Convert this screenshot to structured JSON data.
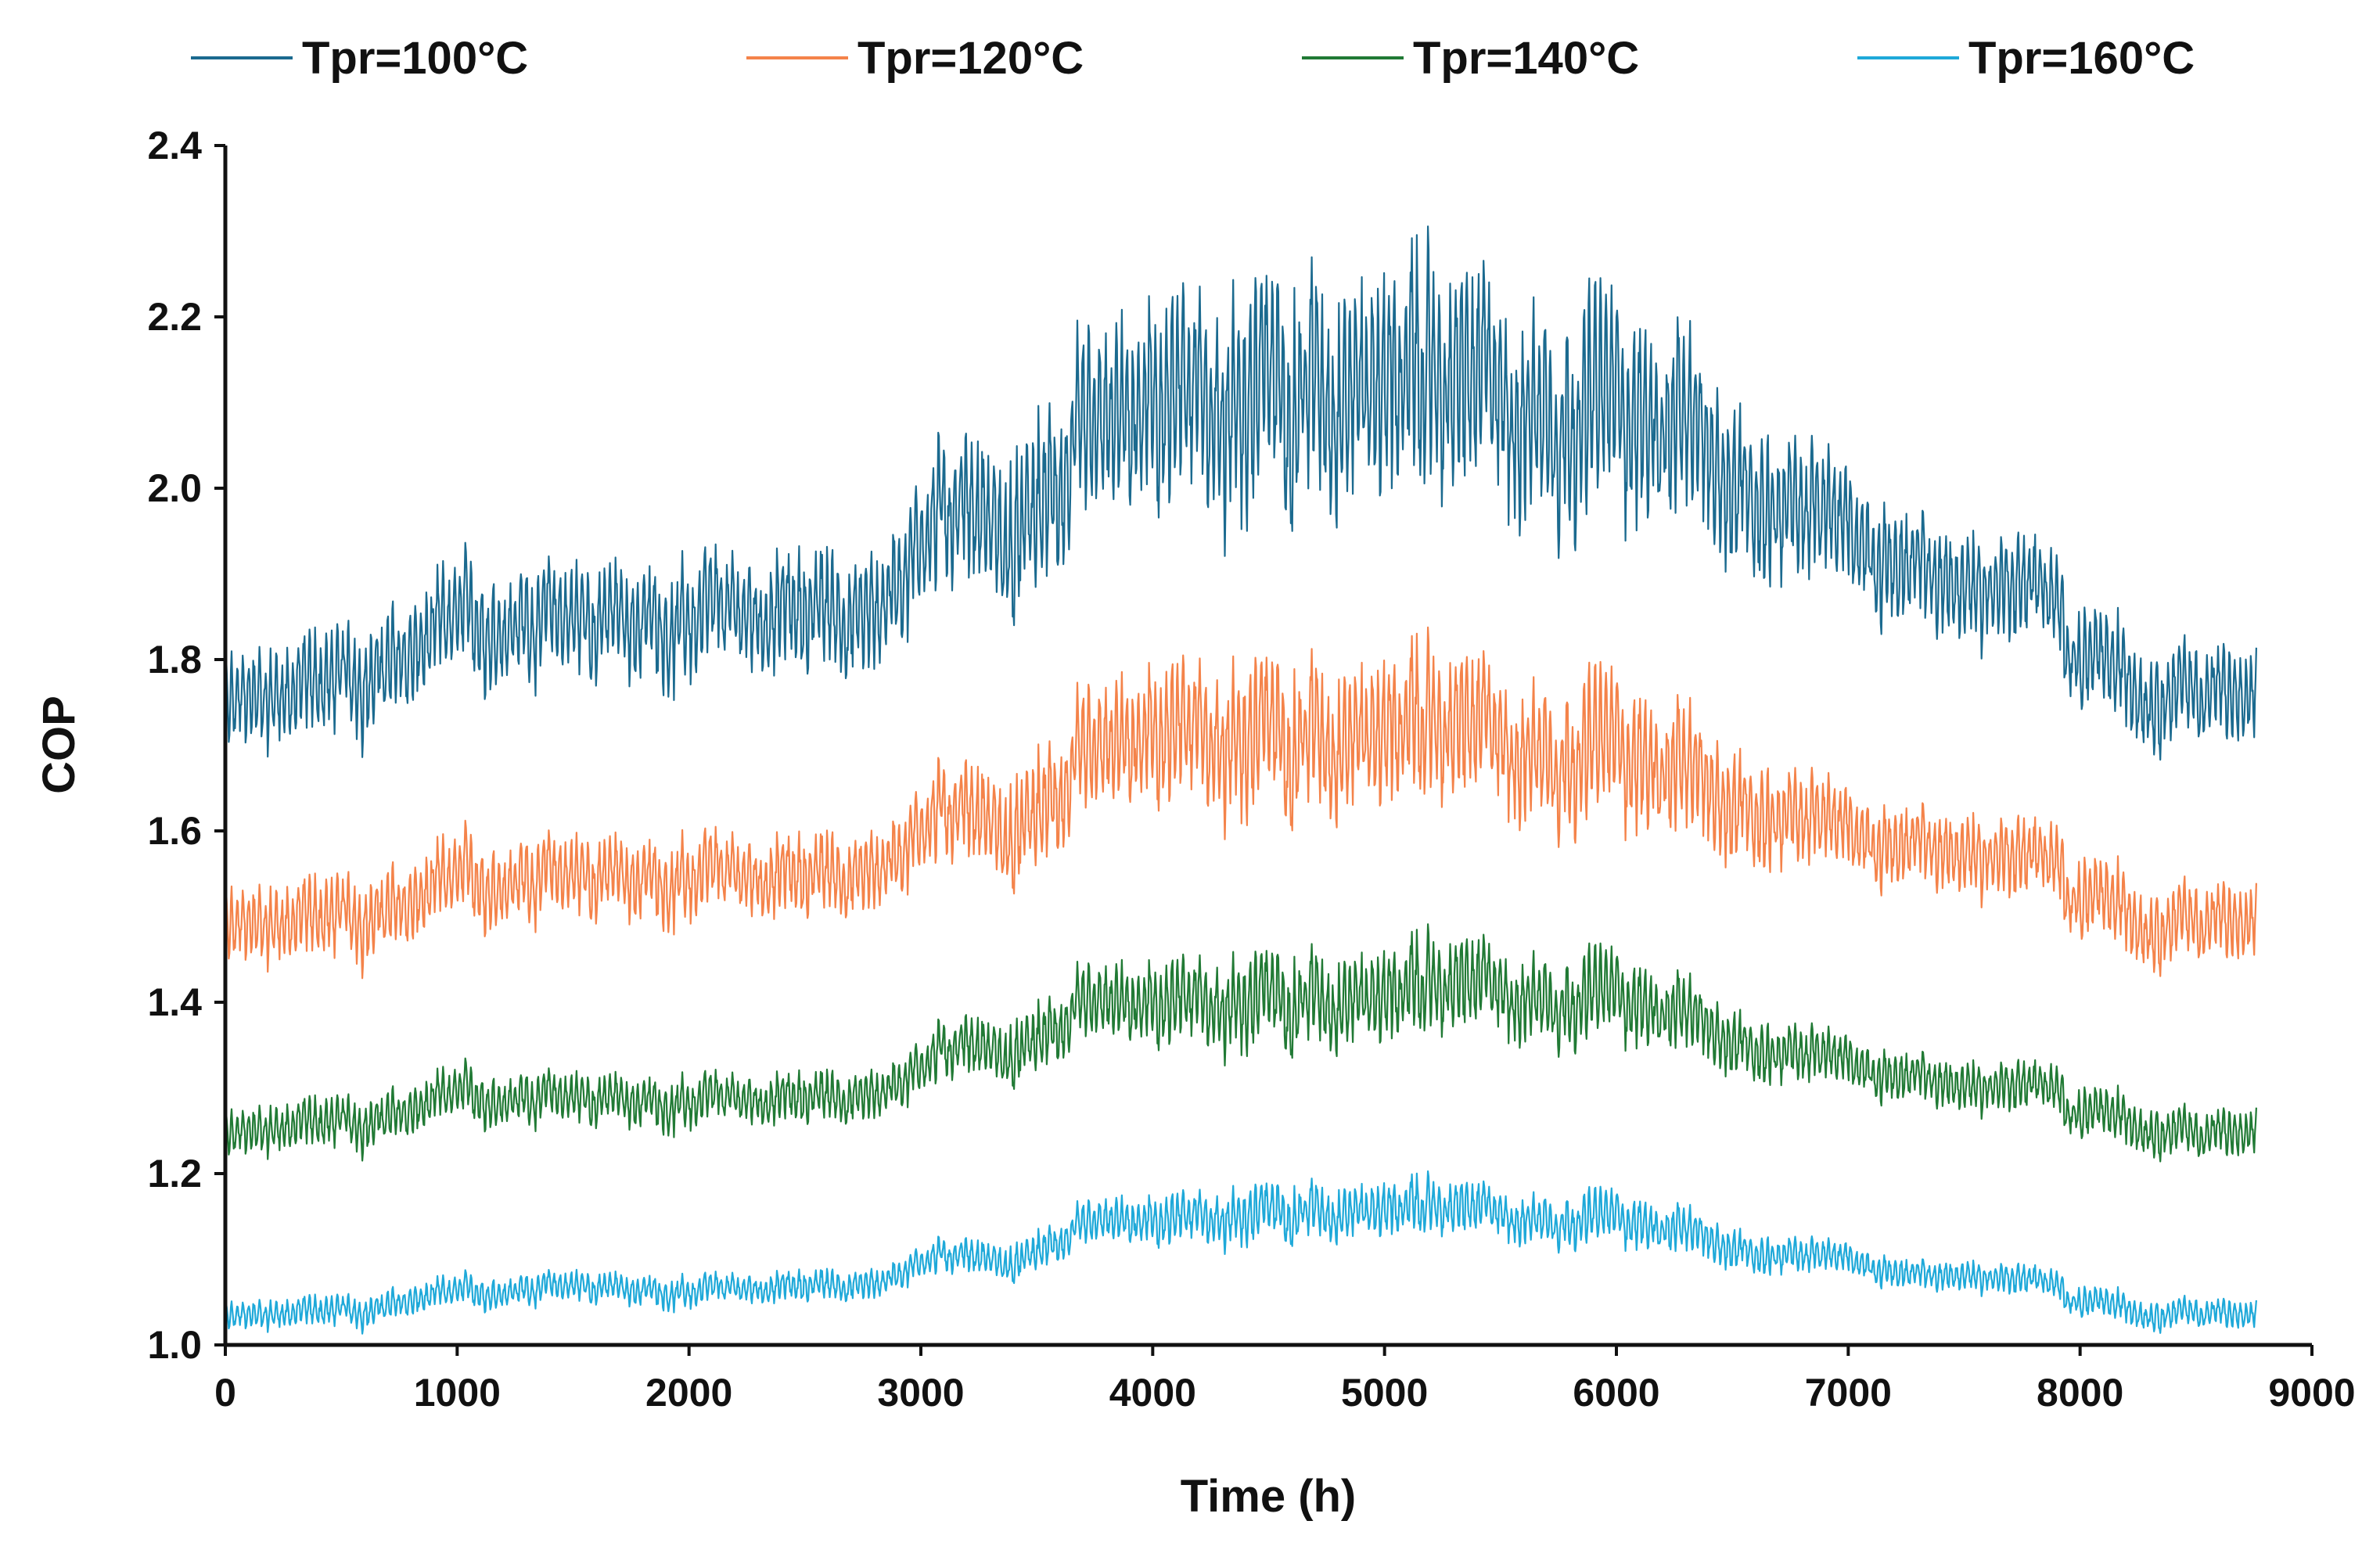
{
  "chart_data": {
    "type": "line",
    "title": "",
    "xlabel": "Time (h)",
    "ylabel": "COP",
    "xlim": [
      0,
      9000
    ],
    "ylim": [
      1.0,
      2.4
    ],
    "x_ticks": [
      0,
      1000,
      2000,
      3000,
      4000,
      5000,
      6000,
      7000,
      8000,
      9000
    ],
    "y_ticks": [
      1.0,
      1.2,
      1.4,
      1.6,
      1.8,
      2.0,
      2.2,
      2.4
    ],
    "y_tick_labels": [
      "1.0",
      "1.2",
      "1.4",
      "1.6",
      "1.8",
      "2.0",
      "2.2",
      "2.4"
    ],
    "x_tick_labels": [
      "0",
      "1000",
      "2000",
      "3000",
      "4000",
      "5000",
      "6000",
      "7000",
      "8000",
      "9000"
    ],
    "grid": false,
    "legend_position": "top",
    "sampling_note": "hourly series (8760 h); values below are the approximate daily-mean trend (base_x/base_y) and the typical intra-day oscillation amplitude (amp_x/amp)",
    "series": [
      {
        "name": "Tpr=100°C",
        "legend_label": "Tpr=100°C",
        "color": "#1b6a8f",
        "base_x": [
          0,
          300,
          600,
          800,
          1000,
          1500,
          2000,
          2500,
          2800,
          3000,
          3200,
          3400,
          3600,
          3800,
          4000,
          4300,
          4600,
          5000,
          5300,
          5600,
          6000,
          6300,
          6600,
          7000,
          7300,
          7500,
          7800,
          8000,
          8300,
          8500,
          8760
        ],
        "base_y": [
          1.74,
          1.77,
          1.78,
          1.8,
          1.84,
          1.85,
          1.84,
          1.86,
          1.85,
          1.95,
          2.0,
          1.92,
          2.0,
          2.05,
          2.08,
          2.1,
          2.13,
          2.13,
          2.12,
          2.1,
          2.1,
          2.06,
          2.0,
          1.95,
          1.9,
          1.88,
          1.9,
          1.8,
          1.77,
          1.77,
          1.74
        ],
        "amp_x": [
          0,
          2800,
          3500,
          4500,
          5500,
          6300,
          7000,
          8000,
          8760
        ],
        "amp": [
          0.05,
          0.06,
          0.09,
          0.12,
          0.11,
          0.1,
          0.06,
          0.05,
          0.05
        ]
      },
      {
        "name": "Tpr=120°C",
        "legend_label": "Tpr=120°C",
        "color": "#f4834a",
        "base_x": [
          0,
          300,
          600,
          800,
          1000,
          1500,
          2000,
          2500,
          2800,
          3000,
          3200,
          3400,
          3600,
          3800,
          4000,
          4300,
          4600,
          5000,
          5300,
          5600,
          6000,
          6300,
          6600,
          7000,
          7300,
          7500,
          7800,
          8000,
          8300,
          8500,
          8760
        ],
        "base_y": [
          1.48,
          1.5,
          1.5,
          1.51,
          1.54,
          1.55,
          1.54,
          1.55,
          1.55,
          1.61,
          1.64,
          1.58,
          1.64,
          1.68,
          1.7,
          1.71,
          1.72,
          1.72,
          1.72,
          1.7,
          1.7,
          1.66,
          1.63,
          1.6,
          1.58,
          1.57,
          1.58,
          1.52,
          1.5,
          1.5,
          1.48
        ],
        "amp_x": [
          0,
          2800,
          3500,
          4500,
          5500,
          6300,
          7000,
          8000,
          8760
        ],
        "amp": [
          0.04,
          0.04,
          0.06,
          0.08,
          0.07,
          0.07,
          0.04,
          0.04,
          0.04
        ]
      },
      {
        "name": "Tpr=140°C",
        "legend_label": "Tpr=140°C",
        "color": "#217a35",
        "base_x": [
          0,
          300,
          600,
          800,
          1000,
          1500,
          2000,
          2500,
          2800,
          3000,
          3200,
          3400,
          3600,
          3800,
          4000,
          4300,
          4600,
          5000,
          5300,
          5600,
          6000,
          6300,
          6600,
          7000,
          7300,
          7500,
          7800,
          8000,
          8300,
          8500,
          8760
        ],
        "base_y": [
          1.24,
          1.26,
          1.26,
          1.27,
          1.29,
          1.29,
          1.28,
          1.29,
          1.29,
          1.33,
          1.36,
          1.33,
          1.37,
          1.39,
          1.39,
          1.4,
          1.41,
          1.41,
          1.42,
          1.41,
          1.41,
          1.38,
          1.35,
          1.33,
          1.31,
          1.3,
          1.31,
          1.27,
          1.26,
          1.25,
          1.24
        ],
        "amp_x": [
          0,
          2800,
          3500,
          4500,
          5500,
          6300,
          7000,
          8000,
          8760
        ],
        "amp": [
          0.025,
          0.025,
          0.035,
          0.05,
          0.045,
          0.04,
          0.025,
          0.025,
          0.025
        ]
      },
      {
        "name": "Tpr=160°C",
        "legend_label": "Tpr=160°C",
        "color": "#1fa9d9",
        "base_x": [
          0,
          300,
          600,
          800,
          1000,
          1500,
          2000,
          2500,
          2800,
          3000,
          3200,
          3400,
          3600,
          3800,
          4000,
          4300,
          4600,
          5000,
          5300,
          5600,
          6000,
          6300,
          6600,
          7000,
          7300,
          7500,
          7800,
          8000,
          8300,
          8500,
          8760
        ],
        "base_y": [
          1.03,
          1.04,
          1.04,
          1.05,
          1.06,
          1.07,
          1.06,
          1.07,
          1.07,
          1.1,
          1.11,
          1.09,
          1.12,
          1.14,
          1.14,
          1.15,
          1.16,
          1.16,
          1.16,
          1.15,
          1.15,
          1.13,
          1.11,
          1.1,
          1.08,
          1.08,
          1.08,
          1.05,
          1.04,
          1.04,
          1.03
        ],
        "amp_x": [
          0,
          2800,
          3500,
          4500,
          5500,
          6300,
          7000,
          8000,
          8760
        ],
        "amp": [
          0.015,
          0.015,
          0.02,
          0.03,
          0.025,
          0.025,
          0.015,
          0.015,
          0.015
        ]
      }
    ]
  }
}
